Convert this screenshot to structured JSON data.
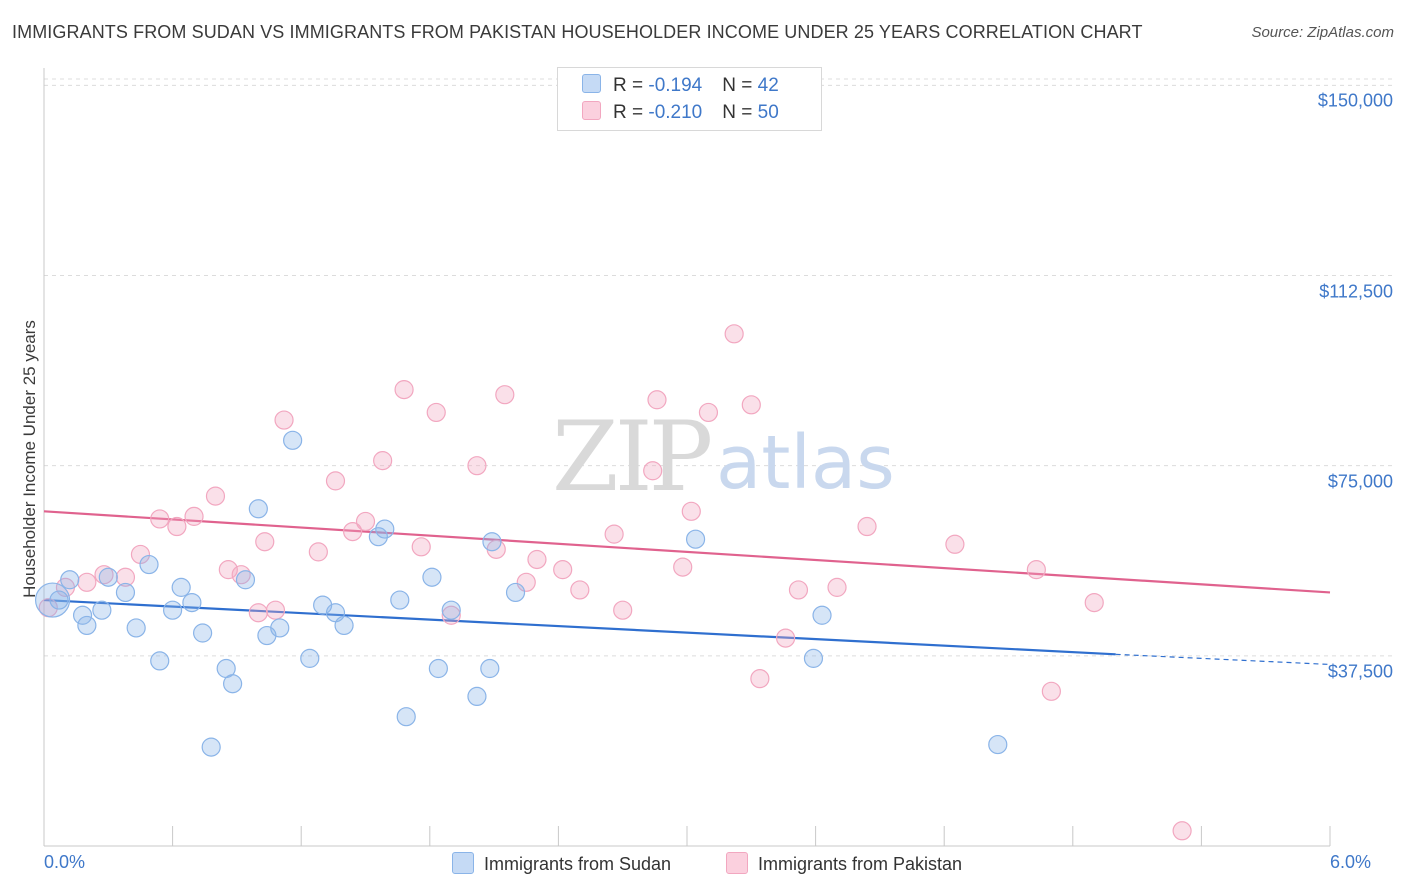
{
  "chart_data": {
    "type": "scatter",
    "title": "IMMIGRANTS FROM SUDAN VS IMMIGRANTS FROM PAKISTAN HOUSEHOLDER INCOME UNDER 25 YEARS CORRELATION CHART",
    "source": "Source: ZipAtlas.com",
    "ylabel": "Householder Income Under 25 years",
    "xlim": [
      0,
      6
    ],
    "ylim": [
      0,
      155000
    ],
    "x_tick_labels": [
      "0.0%",
      "6.0%"
    ],
    "y_ticks": [
      {
        "value": 37500,
        "label": "$37,500"
      },
      {
        "value": 75000,
        "label": "$75,000"
      },
      {
        "value": 112500,
        "label": "$112,500"
      },
      {
        "value": 150000,
        "label": "$150,000"
      }
    ],
    "watermark": {
      "zip": "ZIP",
      "atlas": "atlas"
    },
    "legend": [
      {
        "r_label": "R = ",
        "r_value": "-0.194",
        "n_label": "N = ",
        "n_value": "42"
      },
      {
        "r_label": "R = ",
        "r_value": "-0.210",
        "n_label": "N = ",
        "n_value": "50"
      }
    ],
    "series": [
      {
        "name": "Immigrants from Sudan",
        "color": "#8ab4e8",
        "line_color": "#2f6fcf",
        "trend": {
          "x0": 0.0,
          "y0": 48500,
          "x1": 5.0,
          "y1": 37800,
          "dash_x1": 6.0,
          "dash_y1": 35800
        },
        "points": [
          [
            0.07,
            48500
          ],
          [
            0.12,
            52500
          ],
          [
            0.18,
            45500
          ],
          [
            0.2,
            43500
          ],
          [
            0.27,
            46500
          ],
          [
            0.3,
            53000
          ],
          [
            0.38,
            50000
          ],
          [
            0.43,
            43000
          ],
          [
            0.49,
            55500
          ],
          [
            0.54,
            36500
          ],
          [
            0.6,
            46500
          ],
          [
            0.64,
            51000
          ],
          [
            0.69,
            48000
          ],
          [
            0.74,
            42000
          ],
          [
            0.78,
            19500
          ],
          [
            0.85,
            35000
          ],
          [
            0.88,
            32000
          ],
          [
            0.94,
            52500
          ],
          [
            1.0,
            66500
          ],
          [
            1.04,
            41500
          ],
          [
            1.1,
            43000
          ],
          [
            1.16,
            80000
          ],
          [
            1.24,
            37000
          ],
          [
            1.3,
            47500
          ],
          [
            1.36,
            46000
          ],
          [
            1.4,
            43500
          ],
          [
            1.56,
            61000
          ],
          [
            1.59,
            62500
          ],
          [
            1.66,
            48500
          ],
          [
            1.69,
            25500
          ],
          [
            1.81,
            53000
          ],
          [
            1.84,
            35000
          ],
          [
            1.9,
            46500
          ],
          [
            2.02,
            29500
          ],
          [
            2.08,
            35000
          ],
          [
            2.09,
            60000
          ],
          [
            2.2,
            50000
          ],
          [
            3.04,
            60500
          ],
          [
            3.59,
            37000
          ],
          [
            3.63,
            45500
          ],
          [
            4.45,
            20000
          ],
          [
            0.04,
            48500
          ]
        ],
        "point_sizes": [
          9,
          9,
          9,
          9,
          9,
          9,
          9,
          9,
          9,
          9,
          9,
          9,
          9,
          9,
          9,
          9,
          9,
          9,
          9,
          9,
          9,
          9,
          9,
          9,
          9,
          9,
          9,
          9,
          9,
          9,
          9,
          9,
          9,
          9,
          9,
          9,
          9,
          9,
          9,
          9,
          9,
          17
        ]
      },
      {
        "name": "Immigrants from Pakistan",
        "color": "#f2a7c0",
        "line_color": "#e0628e",
        "trend": {
          "x0": 0.0,
          "y0": 66000,
          "x1": 6.0,
          "y1": 50000
        },
        "points": [
          [
            0.02,
            47000
          ],
          [
            0.1,
            51000
          ],
          [
            0.2,
            52000
          ],
          [
            0.28,
            53500
          ],
          [
            0.38,
            53000
          ],
          [
            0.45,
            57500
          ],
          [
            0.54,
            64500
          ],
          [
            0.62,
            63000
          ],
          [
            0.7,
            65000
          ],
          [
            0.8,
            69000
          ],
          [
            0.86,
            54500
          ],
          [
            0.92,
            53500
          ],
          [
            1.0,
            46000
          ],
          [
            1.03,
            60000
          ],
          [
            1.08,
            46500
          ],
          [
            1.12,
            84000
          ],
          [
            1.28,
            58000
          ],
          [
            1.36,
            72000
          ],
          [
            1.44,
            62000
          ],
          [
            1.5,
            64000
          ],
          [
            1.58,
            76000
          ],
          [
            1.68,
            90000
          ],
          [
            1.76,
            59000
          ],
          [
            1.83,
            85500
          ],
          [
            1.9,
            45500
          ],
          [
            2.02,
            75000
          ],
          [
            2.11,
            58500
          ],
          [
            2.15,
            89000
          ],
          [
            2.25,
            52000
          ],
          [
            2.3,
            56500
          ],
          [
            2.42,
            54500
          ],
          [
            2.5,
            50500
          ],
          [
            2.66,
            61500
          ],
          [
            2.7,
            46500
          ],
          [
            2.84,
            74000
          ],
          [
            2.86,
            88000
          ],
          [
            2.98,
            55000
          ],
          [
            3.02,
            66000
          ],
          [
            3.1,
            85500
          ],
          [
            3.22,
            101000
          ],
          [
            3.3,
            87000
          ],
          [
            3.34,
            33000
          ],
          [
            3.46,
            41000
          ],
          [
            3.52,
            50500
          ],
          [
            3.7,
            51000
          ],
          [
            3.84,
            63000
          ],
          [
            4.25,
            59500
          ],
          [
            4.63,
            54500
          ],
          [
            4.7,
            30500
          ],
          [
            4.9,
            48000
          ]
        ],
        "point_sizes": [
          9,
          9,
          9,
          9,
          9,
          9,
          9,
          9,
          9,
          9,
          9,
          9,
          9,
          9,
          9,
          9,
          9,
          9,
          9,
          9,
          9,
          9,
          9,
          9,
          9,
          9,
          9,
          9,
          9,
          9,
          9,
          9,
          9,
          9,
          9,
          9,
          9,
          9,
          9,
          9,
          9,
          9,
          9,
          9,
          9,
          9,
          9,
          9,
          9,
          9
        ]
      }
    ],
    "extra_points_pakistan": [
      [
        5.31,
        3000
      ]
    ]
  }
}
